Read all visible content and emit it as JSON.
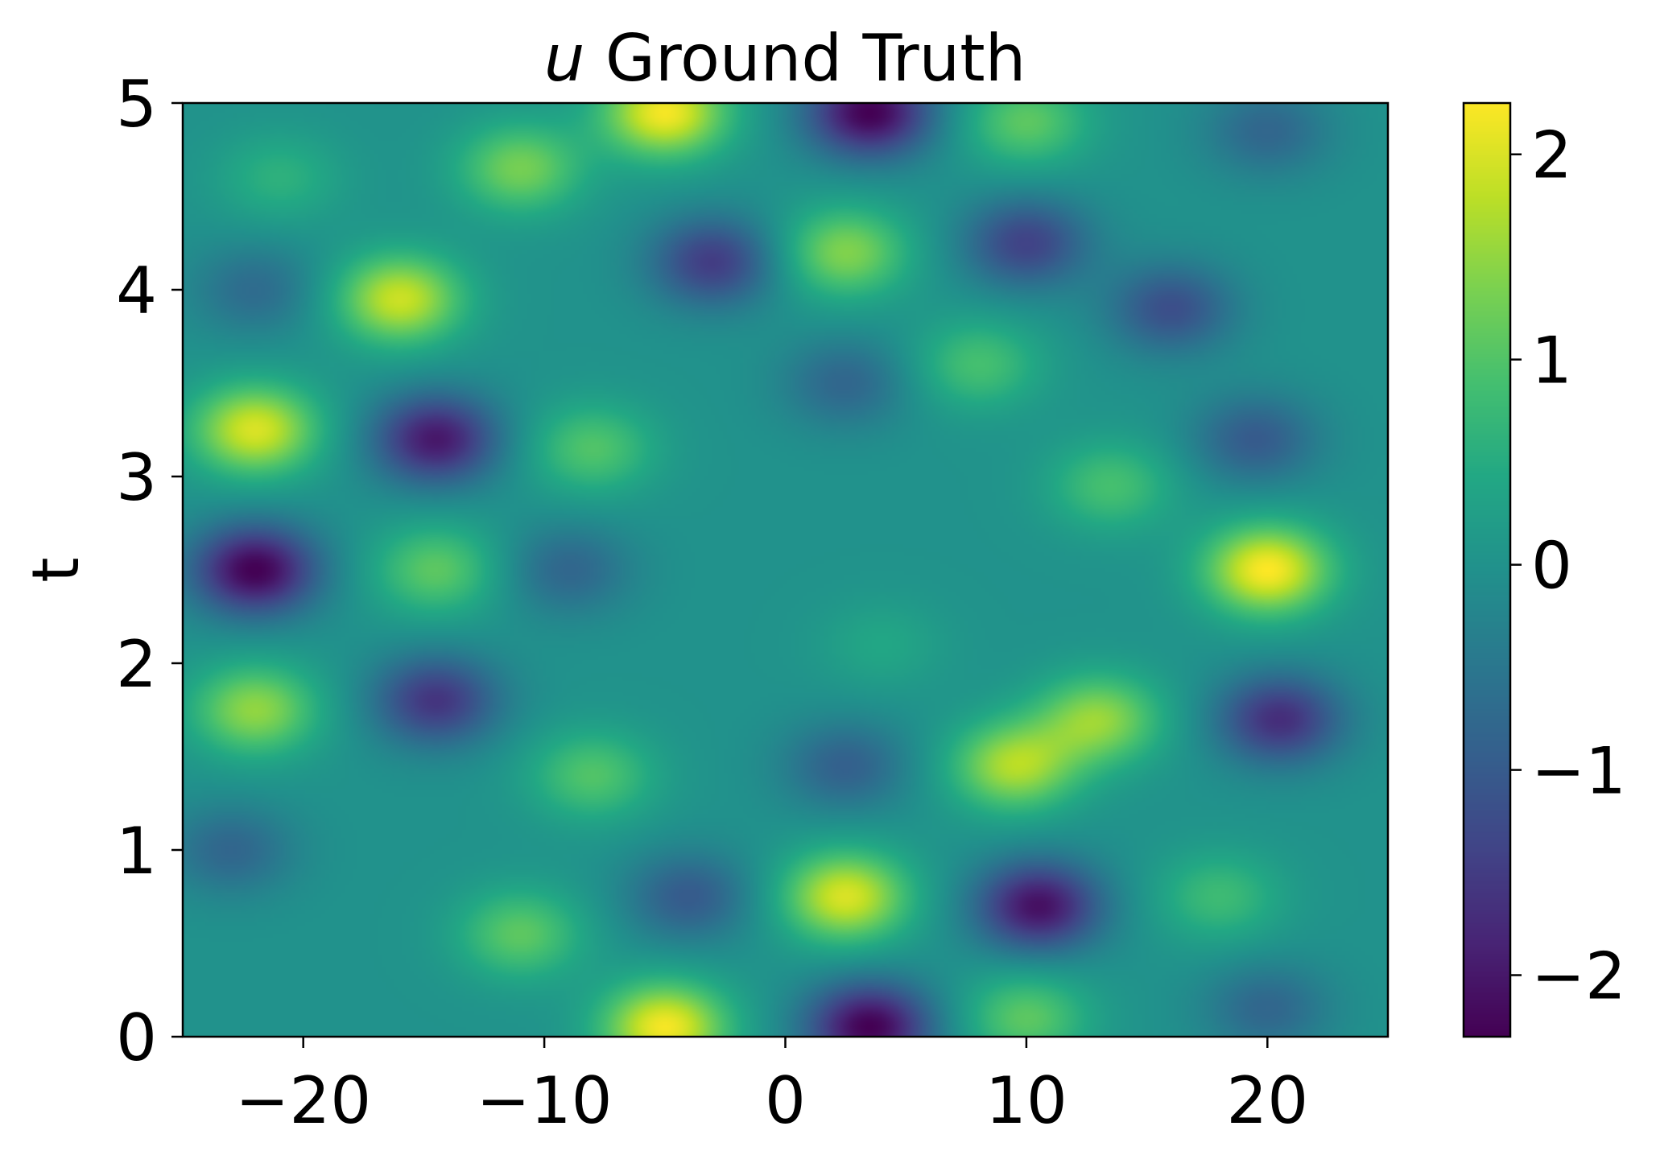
{
  "chart_data": {
    "type": "heatmap",
    "title_var": "u",
    "title_text": " Ground Truth",
    "xlabel": "",
    "ylabel": "t",
    "xlim": [
      -25,
      25
    ],
    "ylim": [
      0,
      5
    ],
    "x_ticks": [
      -20,
      -10,
      0,
      10,
      20
    ],
    "x_tick_labels": [
      "−20",
      "−10",
      "0",
      "10",
      "20"
    ],
    "y_ticks": [
      0,
      1,
      2,
      3,
      4,
      5
    ],
    "y_tick_labels": [
      "0",
      "1",
      "2",
      "3",
      "4",
      "5"
    ],
    "colorbar": {
      "colormap": "viridis",
      "range": [
        -2.3,
        2.25
      ],
      "ticks": [
        -2,
        -1,
        0,
        1,
        2
      ],
      "tick_labels": [
        "−2",
        "−1",
        "0",
        "1",
        "2"
      ]
    },
    "grid": false,
    "field_features": [
      {
        "x": -5,
        "t": 0.05,
        "value": 2.2
      },
      {
        "x": 3.5,
        "t": 0.05,
        "value": -2.3
      },
      {
        "x": 10,
        "t": 0.1,
        "value": 1.1
      },
      {
        "x": 20,
        "t": 0.15,
        "value": -0.8
      },
      {
        "x": -11,
        "t": 0.55,
        "value": 1.1
      },
      {
        "x": -4,
        "t": 0.75,
        "value": -1.0
      },
      {
        "x": 2.5,
        "t": 0.75,
        "value": 2.0
      },
      {
        "x": 10.5,
        "t": 0.7,
        "value": -2.1
      },
      {
        "x": 18,
        "t": 0.75,
        "value": 0.8
      },
      {
        "x": -23,
        "t": 1.0,
        "value": -0.8
      },
      {
        "x": -8,
        "t": 1.4,
        "value": 1.0
      },
      {
        "x": 2.5,
        "t": 1.45,
        "value": -0.9
      },
      {
        "x": 9.5,
        "t": 1.45,
        "value": 1.7
      },
      {
        "x": 13,
        "t": 1.7,
        "value": 1.5
      },
      {
        "x": 20.5,
        "t": 1.7,
        "value": -1.7
      },
      {
        "x": -22,
        "t": 1.75,
        "value": 1.5
      },
      {
        "x": -14.5,
        "t": 1.8,
        "value": -1.6
      },
      {
        "x": 4,
        "t": 2.1,
        "value": 0.4
      },
      {
        "x": -9,
        "t": 2.5,
        "value": -0.8
      },
      {
        "x": -14.5,
        "t": 2.5,
        "value": 1.1
      },
      {
        "x": -22,
        "t": 2.5,
        "value": -2.3
      },
      {
        "x": 20,
        "t": 2.5,
        "value": 2.25
      },
      {
        "x": 13.5,
        "t": 2.95,
        "value": 0.9
      },
      {
        "x": 19.5,
        "t": 3.2,
        "value": -1.0
      },
      {
        "x": -14.5,
        "t": 3.2,
        "value": -2.0
      },
      {
        "x": -22,
        "t": 3.25,
        "value": 2.0
      },
      {
        "x": -8,
        "t": 3.15,
        "value": 1.0
      },
      {
        "x": 8,
        "t": 3.6,
        "value": 0.9
      },
      {
        "x": 2.5,
        "t": 3.5,
        "value": -0.8
      },
      {
        "x": 16,
        "t": 3.9,
        "value": -1.2
      },
      {
        "x": -16,
        "t": 3.95,
        "value": 1.9
      },
      {
        "x": -22,
        "t": 4.0,
        "value": -0.7
      },
      {
        "x": -3,
        "t": 4.15,
        "value": -1.5
      },
      {
        "x": 2.5,
        "t": 4.2,
        "value": 1.4
      },
      {
        "x": 10,
        "t": 4.25,
        "value": -1.4
      },
      {
        "x": -21,
        "t": 4.6,
        "value": 0.6
      },
      {
        "x": -11,
        "t": 4.65,
        "value": 1.3
      },
      {
        "x": -5,
        "t": 4.95,
        "value": 2.2
      },
      {
        "x": 3.5,
        "t": 4.95,
        "value": -2.3
      },
      {
        "x": 10,
        "t": 4.9,
        "value": 1.1
      },
      {
        "x": 20,
        "t": 4.85,
        "value": -0.8
      }
    ]
  }
}
